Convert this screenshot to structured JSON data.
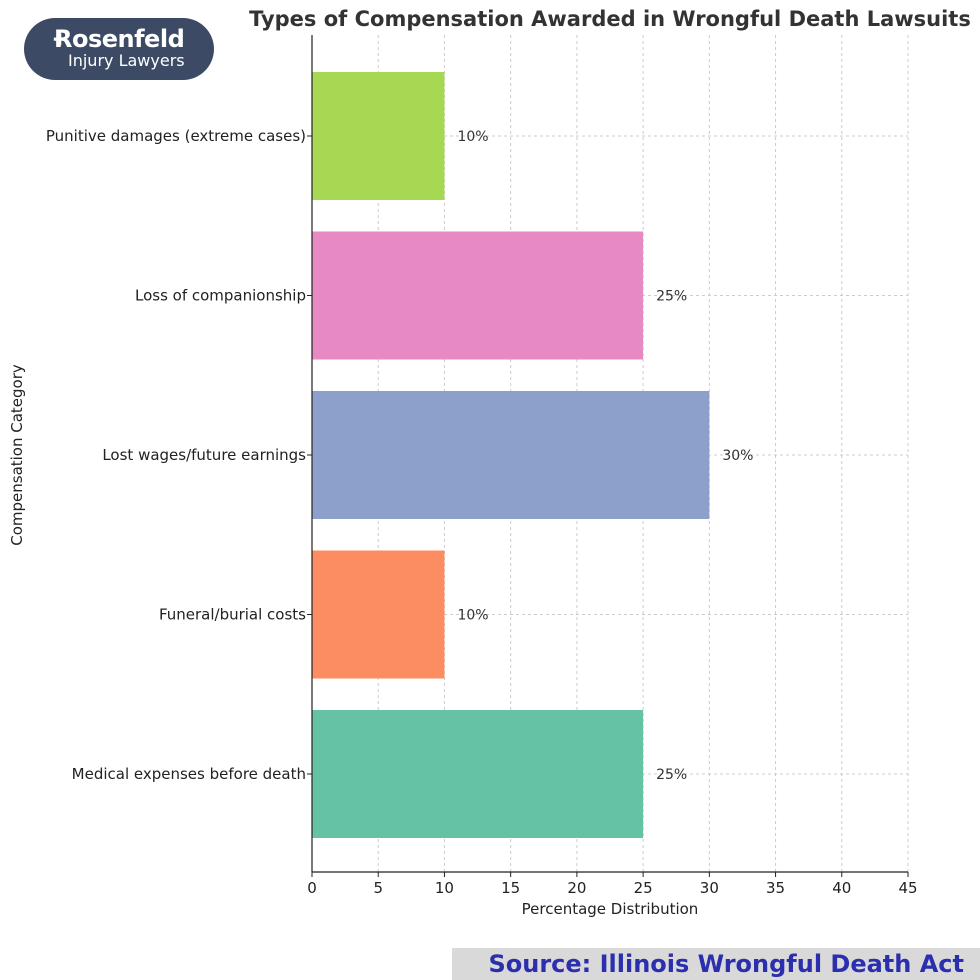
{
  "logo": {
    "name": "Rosenfeld",
    "tagline": "Injury Lawyers"
  },
  "source_note": "Source: Illinois Wrongful Death Act",
  "chart_data": {
    "type": "bar",
    "orientation": "horizontal",
    "title": "Types of Compensation Awarded in Wrongful Death Lawsuits",
    "xlabel": "Percentage Distribution",
    "ylabel": "Compensation Category",
    "xlim": [
      0,
      45
    ],
    "xticks": [
      0,
      5,
      10,
      15,
      20,
      25,
      30,
      35,
      40,
      45
    ],
    "grid": true,
    "categories": [
      "Medical expenses before death",
      "Funeral/burial costs",
      "Lost wages/future earnings",
      "Loss of companionship",
      "Punitive damages (extreme cases)"
    ],
    "values": [
      25,
      10,
      30,
      25,
      10
    ],
    "data_labels": [
      "25%",
      "10%",
      "30%",
      "25%",
      "10%"
    ],
    "colors": [
      "#66c2a5",
      "#fc8d62",
      "#8da0cb",
      "#e78ac3",
      "#a6d854"
    ]
  }
}
